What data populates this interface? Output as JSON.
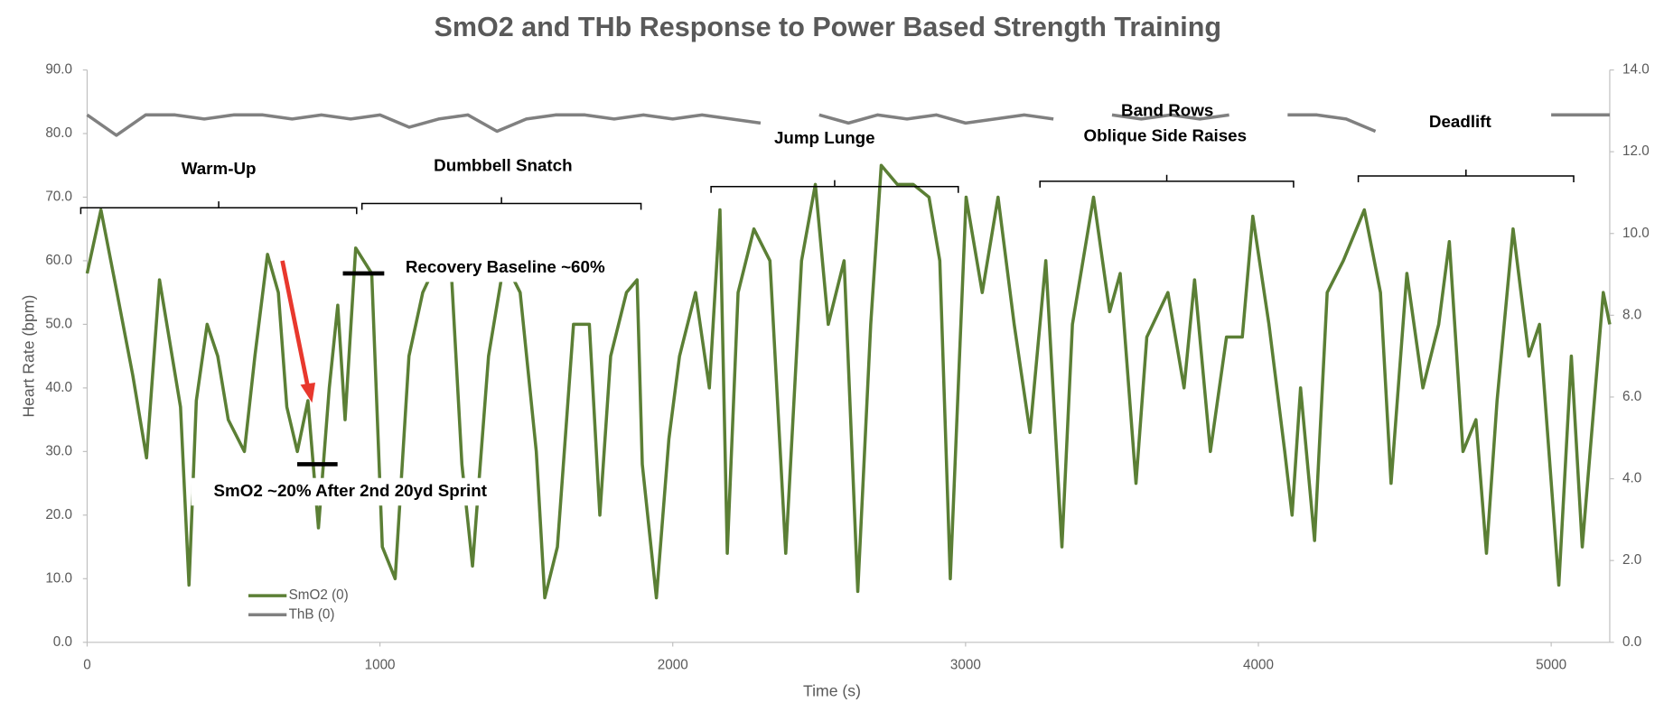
{
  "chart_data": {
    "type": "line",
    "title": "SmO2  and THb Response to Power Based Strength Training",
    "x_label": "Time (s)",
    "y_label": "Heart Rate (bpm)",
    "xlim": [
      0,
      5200
    ],
    "xticks": [
      0,
      1000,
      2000,
      3000,
      4000,
      5000
    ],
    "ylim": [
      0,
      90
    ],
    "yticks": [
      {
        "value": 0,
        "label": "0.0"
      },
      {
        "value": 10,
        "label": "10.0"
      },
      {
        "value": 20,
        "label": "20.0"
      },
      {
        "value": 30,
        "label": "30.0"
      },
      {
        "value": 40,
        "label": "40.0"
      },
      {
        "value": 50,
        "label": "50.0"
      },
      {
        "value": 60,
        "label": "60.0"
      },
      {
        "value": 70,
        "label": "70.0"
      },
      {
        "value": 80,
        "label": "80.0"
      },
      {
        "value": 90,
        "label": "90.0"
      }
    ],
    "y2lim": [
      0,
      14
    ],
    "y2ticks": [
      {
        "value": 0,
        "label": "0.0"
      },
      {
        "value": 2,
        "label": "2.0"
      },
      {
        "value": 4,
        "label": "4.0"
      },
      {
        "value": 6,
        "label": "6.0"
      },
      {
        "value": 8,
        "label": "8.0"
      },
      {
        "value": 10,
        "label": "10.0"
      },
      {
        "value": 12,
        "label": "12.0"
      },
      {
        "value": 14,
        "label": "14.0"
      }
    ],
    "grid": false,
    "legend": "lower left",
    "series": [
      {
        "name": "SmO2 (0)",
        "color": "#5b7f35",
        "x": [
          0,
          47,
          102,
          156,
          203,
          247,
          319,
          348,
          373,
          410,
          446,
          482,
          537,
          573,
          616,
          653,
          682,
          718,
          754,
          790,
          827,
          856,
          881,
          917,
          972,
          1008,
          1052,
          1099,
          1146,
          1197,
          1244,
          1280,
          1316,
          1371,
          1425,
          1479,
          1534,
          1563,
          1606,
          1661,
          1715,
          1751,
          1788,
          1842,
          1878,
          1896,
          1944,
          1987,
          2023,
          2078,
          2125,
          2161,
          2186,
          2223,
          2277,
          2332,
          2386,
          2440,
          2487,
          2531,
          2585,
          2632,
          2676,
          2712,
          2767,
          2821,
          2875,
          2912,
          2948,
          3002,
          3057,
          3111,
          3166,
          3220,
          3274,
          3329,
          3365,
          3437,
          3492,
          3528,
          3582,
          3619,
          3691,
          3746,
          3782,
          3836,
          3891,
          3945,
          3981,
          4036,
          4090,
          4115,
          4144,
          4192,
          4235,
          4290,
          4362,
          4417,
          4453,
          4507,
          4562,
          4616,
          4652,
          4699,
          4743,
          4779,
          4815,
          4870,
          4924,
          4960,
          5026,
          5069,
          5106,
          5142,
          5178,
          5200
        ],
        "values": [
          58,
          68,
          55,
          42,
          29,
          57,
          37,
          9,
          38,
          50,
          45,
          35,
          30,
          45,
          61,
          55,
          37,
          30,
          38,
          18,
          40,
          53,
          35,
          62,
          58,
          15,
          10,
          45,
          55,
          60,
          58,
          28,
          12,
          45,
          60,
          55,
          30,
          7,
          15,
          50,
          50,
          20,
          45,
          55,
          57,
          28,
          7,
          32,
          45,
          55,
          40,
          68,
          14,
          55,
          65,
          60,
          14,
          60,
          72,
          50,
          60,
          8,
          50,
          75,
          72,
          72,
          70,
          60,
          10,
          70,
          55,
          70,
          50,
          33,
          60,
          15,
          50,
          70,
          52,
          58,
          25,
          48,
          55,
          40,
          57,
          30,
          48,
          48,
          67,
          50,
          30,
          20,
          40,
          16,
          55,
          60,
          68,
          55,
          25,
          58,
          40,
          50,
          63,
          30,
          35,
          14,
          38,
          65,
          45,
          50,
          9,
          45,
          15,
          35,
          55,
          50
        ]
      },
      {
        "name": "ThB (0)",
        "color": "#808080",
        "axis": "y2",
        "x": [
          0,
          100,
          200,
          300,
          400,
          500,
          600,
          700,
          800,
          900,
          1000,
          1100,
          1200,
          1300,
          1400,
          1500,
          1600,
          1700,
          1800,
          1900,
          2000,
          2100,
          2200,
          2300,
          2400,
          2500,
          2600,
          2700,
          2800,
          2900,
          3000,
          3100,
          3200,
          3300,
          3400,
          3500,
          3600,
          3700,
          3800,
          3900,
          4000,
          4100,
          4200,
          4300,
          4400,
          4500,
          4600,
          4700,
          4800,
          4900,
          5000,
          5100,
          5200
        ],
        "values": [
          12.9,
          12.4,
          12.9,
          12.9,
          12.8,
          12.9,
          12.9,
          12.8,
          12.9,
          12.8,
          12.9,
          12.6,
          12.8,
          12.9,
          12.5,
          12.8,
          12.9,
          12.9,
          12.8,
          12.9,
          12.8,
          12.9,
          12.8,
          12.7,
          null,
          12.9,
          12.7,
          12.9,
          12.8,
          12.9,
          12.7,
          12.8,
          12.9,
          12.8,
          null,
          12.9,
          12.8,
          12.9,
          12.8,
          12.9,
          null,
          12.9,
          12.9,
          12.8,
          12.5,
          null,
          null,
          null,
          null,
          null,
          12.9,
          12.9,
          12.9
        ]
      }
    ],
    "annotations": [
      "Warm-Up",
      "Dumbbell Snatch",
      "Jump Lunge",
      "Band Rows",
      "Oblique Side Raises",
      "Deadlift",
      "Recovery Baseline ~60%",
      "SmO2 ~20% After 2nd 20yd Sprint"
    ]
  }
}
